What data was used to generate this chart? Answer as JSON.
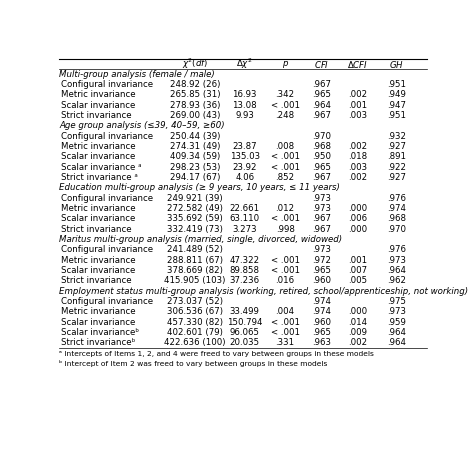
{
  "col_headers": [
    "χ²(df)",
    "Δχ²",
    "p",
    "CFI",
    "ΔCFI",
    "GH"
  ],
  "section_headers": [
    "Multi-group analysis (female / male)",
    "Age group analysis (≤39, 40–59, ≥60)",
    "Education multi-group analysis (≥ 9 years, 10 years, ≤ 11 years)",
    "Maritus multi-group analysis (married, single, divorced, widowed)",
    "Employment status multi-group analysis (working, retired, school/apprenticeship, not working)"
  ],
  "rows": [
    {
      "section": 0,
      "label": "Configural invariance",
      "chi2": "248.92 (26)",
      "dchi2": "",
      "p": "",
      "cfi": ".967",
      "dcfi": "",
      "gh": ".951"
    },
    {
      "section": 0,
      "label": "Metric invariance",
      "chi2": "265.85 (31)",
      "dchi2": "16.93",
      "p": ".342",
      "cfi": ".965",
      "dcfi": ".002",
      "gh": ".949"
    },
    {
      "section": 0,
      "label": "Scalar invariance",
      "chi2": "278.93 (36)",
      "dchi2": "13.08",
      "p": "< .001",
      "cfi": ".964",
      "dcfi": ".001",
      "gh": ".947"
    },
    {
      "section": 0,
      "label": "Strict invariance",
      "chi2": "269.00 (43)",
      "dchi2": "9.93",
      "p": ".248",
      "cfi": ".967",
      "dcfi": ".003",
      "gh": ".951"
    },
    {
      "section": 1,
      "label": "Configural invariance",
      "chi2": "250.44 (39)",
      "dchi2": "",
      "p": "",
      "cfi": ".970",
      "dcfi": "",
      "gh": ".932"
    },
    {
      "section": 1,
      "label": "Metric invariance",
      "chi2": "274.31 (49)",
      "dchi2": "23.87",
      "p": ".008",
      "cfi": ".968",
      "dcfi": ".002",
      "gh": ".927"
    },
    {
      "section": 1,
      "label": "Scalar invariance",
      "chi2": "409.34 (59)",
      "dchi2": "135.03",
      "p": "< .001",
      "cfi": ".950",
      "dcfi": ".018",
      "gh": ".891"
    },
    {
      "section": 1,
      "label": "Scalar invariance ᵃ",
      "chi2": "298.23 (53)",
      "dchi2": "23.92",
      "p": "< .001",
      "cfi": ".965",
      "dcfi": ".003",
      "gh": ".922"
    },
    {
      "section": 1,
      "label": "Strict invariance ᵃ",
      "chi2": "294.17 (67)",
      "dchi2": "4.06",
      "p": ".852",
      "cfi": ".967",
      "dcfi": ".002",
      "gh": ".927"
    },
    {
      "section": 2,
      "label": "Configural invariance",
      "chi2": "249.921 (39)",
      "dchi2": "",
      "p": "",
      "cfi": ".973",
      "dcfi": "",
      "gh": ".976"
    },
    {
      "section": 2,
      "label": "Metric invariance",
      "chi2": "272.582 (49)",
      "dchi2": "22.661",
      "p": ".012",
      "cfi": ".973",
      "dcfi": ".000",
      "gh": ".974"
    },
    {
      "section": 2,
      "label": "Scalar invariance",
      "chi2": "335.692 (59)",
      "dchi2": "63.110",
      "p": "< .001",
      "cfi": ".967",
      "dcfi": ".006",
      "gh": ".968"
    },
    {
      "section": 2,
      "label": "Strict invariance",
      "chi2": "332.419 (73)",
      "dchi2": "3.273",
      "p": ".998",
      "cfi": ".967",
      "dcfi": ".000",
      "gh": ".970"
    },
    {
      "section": 3,
      "label": "Configural invariance",
      "chi2": "241.489 (52)",
      "dchi2": "",
      "p": "",
      "cfi": ".973",
      "dcfi": "",
      "gh": ".976"
    },
    {
      "section": 3,
      "label": "Metric invariance",
      "chi2": "288.811 (67)",
      "dchi2": "47.322",
      "p": "< .001",
      "cfi": ".972",
      "dcfi": ".001",
      "gh": ".973"
    },
    {
      "section": 3,
      "label": "Scalar invariance",
      "chi2": "378.669 (82)",
      "dchi2": "89.858",
      "p": "< .001",
      "cfi": ".965",
      "dcfi": ".007",
      "gh": ".964"
    },
    {
      "section": 3,
      "label": "Strict invariance",
      "chi2": "415.905 (103)",
      "dchi2": "37.236",
      "p": ".016",
      "cfi": ".960",
      "dcfi": ".005",
      "gh": ".962"
    },
    {
      "section": 4,
      "label": "Configural invariance",
      "chi2": "273.037 (52)",
      "dchi2": "",
      "p": "",
      "cfi": ".974",
      "dcfi": "",
      "gh": ".975"
    },
    {
      "section": 4,
      "label": "Metric invariance",
      "chi2": "306.536 (67)",
      "dchi2": "33.499",
      "p": ".004",
      "cfi": ".974",
      "dcfi": ".000",
      "gh": ".973"
    },
    {
      "section": 4,
      "label": "Scalar invariance",
      "chi2": "457.330 (82)",
      "dchi2": "150.794",
      "p": "< .001",
      "cfi": ".960",
      "dcfi": ".014",
      "gh": ".959"
    },
    {
      "section": 4,
      "label": "Scalar invarianceᵇ",
      "chi2": "402.601 (79)",
      "dchi2": "96.065",
      "p": "< .001",
      "cfi": ".965",
      "dcfi": ".009",
      "gh": ".964"
    },
    {
      "section": 4,
      "label": "Strict invarianceᵇ",
      "chi2": "422.636 (100)",
      "dchi2": "20.035",
      "p": ".331",
      "cfi": ".963",
      "dcfi": ".002",
      "gh": ".964"
    }
  ],
  "footnotes": [
    "ᵃ Intercepts of Items 1, 2, and 4 were freed to vary between groups in these models",
    "ᵇ Intercept of Item 2 was freed to vary between groups in these models"
  ],
  "bg_color": "#ffffff",
  "text_color": "#000000",
  "font_size": 6.2,
  "header_font_size": 6.2
}
